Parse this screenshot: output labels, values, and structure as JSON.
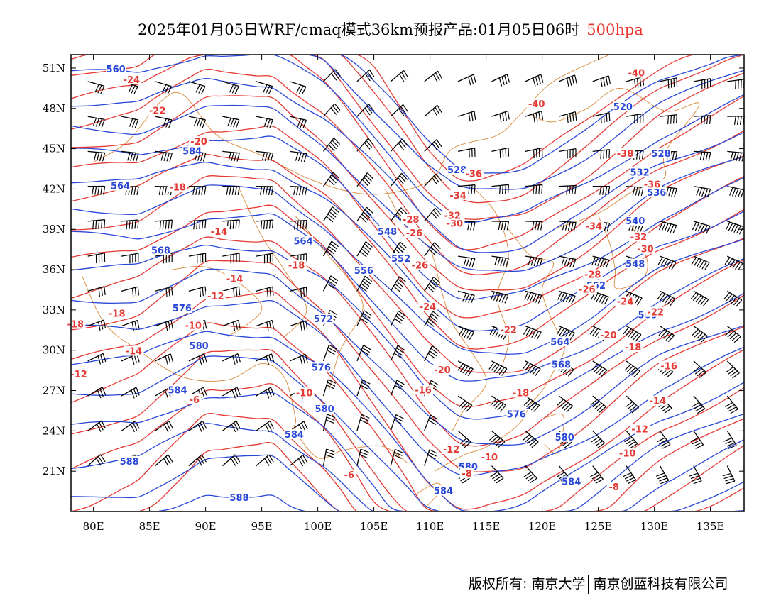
{
  "title": {
    "main": "2025年01月05日WRF/cmaq模式36km预报产品:01月05日06时",
    "level": "500hpa"
  },
  "map": {
    "lon_range": [
      78,
      138
    ],
    "lat_range": [
      18,
      52
    ],
    "lon_ticks": [
      "80E",
      "85E",
      "90E",
      "95E",
      "100E",
      "105E",
      "110E",
      "115E",
      "120E",
      "125E",
      "130E",
      "135E"
    ],
    "lat_ticks": [
      "51N",
      "48N",
      "45N",
      "42N",
      "39N",
      "36N",
      "33N",
      "30N",
      "27N",
      "24N",
      "21N"
    ],
    "colors": {
      "height": "#2a48d8",
      "temperature": "#e53a34",
      "border": "#d98a3a",
      "wind": "#000000"
    },
    "height_labels": [
      {
        "t": "560",
        "lon": 82.0,
        "lat": 50.9
      },
      {
        "t": "584",
        "lon": 88.8,
        "lat": 44.8
      },
      {
        "t": "564",
        "lon": 82.4,
        "lat": 42.2
      },
      {
        "t": "568",
        "lon": 86.0,
        "lat": 37.4
      },
      {
        "t": "576",
        "lon": 87.9,
        "lat": 33.1
      },
      {
        "t": "580",
        "lon": 89.4,
        "lat": 30.3
      },
      {
        "t": "584",
        "lon": 87.5,
        "lat": 27.0
      },
      {
        "t": "588",
        "lon": 83.2,
        "lat": 21.7
      },
      {
        "t": "588",
        "lon": 93.0,
        "lat": 19.0
      },
      {
        "t": "584",
        "lon": 97.9,
        "lat": 23.7
      },
      {
        "t": "580",
        "lon": 100.6,
        "lat": 25.6
      },
      {
        "t": "576",
        "lon": 100.3,
        "lat": 28.7
      },
      {
        "t": "572",
        "lon": 100.5,
        "lat": 32.3
      },
      {
        "t": "564",
        "lon": 98.7,
        "lat": 38.1
      },
      {
        "t": "556",
        "lon": 104.1,
        "lat": 35.9
      },
      {
        "t": "548",
        "lon": 106.2,
        "lat": 38.8
      },
      {
        "t": "552",
        "lon": 107.4,
        "lat": 36.8
      },
      {
        "t": "528",
        "lon": 112.4,
        "lat": 43.4
      },
      {
        "t": "520",
        "lon": 127.2,
        "lat": 48.1
      },
      {
        "t": "528",
        "lon": 130.6,
        "lat": 44.6
      },
      {
        "t": "532",
        "lon": 128.7,
        "lat": 43.2
      },
      {
        "t": "536",
        "lon": 130.2,
        "lat": 41.7
      },
      {
        "t": "540",
        "lon": 128.3,
        "lat": 39.6
      },
      {
        "t": "548",
        "lon": 128.3,
        "lat": 36.4
      },
      {
        "t": "552",
        "lon": 124.8,
        "lat": 34.8
      },
      {
        "t": "560",
        "lon": 129.4,
        "lat": 32.6
      },
      {
        "t": "564",
        "lon": 121.6,
        "lat": 30.6
      },
      {
        "t": "568",
        "lon": 121.7,
        "lat": 28.9
      },
      {
        "t": "576",
        "lon": 117.7,
        "lat": 25.2
      },
      {
        "t": "580",
        "lon": 122.0,
        "lat": 23.5
      },
      {
        "t": "580",
        "lon": 113.4,
        "lat": 21.3
      },
      {
        "t": "584",
        "lon": 111.2,
        "lat": 19.5
      },
      {
        "t": "584",
        "lon": 122.6,
        "lat": 20.2
      }
    ],
    "temperature_labels": [
      {
        "t": "-24",
        "lon": 83.4,
        "lat": 50.1
      },
      {
        "t": "-22",
        "lon": 85.7,
        "lat": 47.8
      },
      {
        "t": "-20",
        "lon": 89.4,
        "lat": 45.5
      },
      {
        "t": "-18",
        "lon": 87.5,
        "lat": 42.1
      },
      {
        "t": "-14",
        "lon": 91.2,
        "lat": 38.8
      },
      {
        "t": "-14",
        "lon": 92.6,
        "lat": 35.3
      },
      {
        "t": "-12",
        "lon": 90.9,
        "lat": 34.0
      },
      {
        "t": "-10",
        "lon": 88.9,
        "lat": 31.8
      },
      {
        "t": "-18",
        "lon": 82.1,
        "lat": 32.7
      },
      {
        "t": "-14",
        "lon": 83.6,
        "lat": 29.9
      },
      {
        "t": "-18",
        "lon": 78.4,
        "lat": 31.9
      },
      {
        "t": "-12",
        "lon": 78.7,
        "lat": 28.2
      },
      {
        "t": "-6",
        "lon": 89.0,
        "lat": 26.3
      },
      {
        "t": "-10",
        "lon": 98.8,
        "lat": 26.8
      },
      {
        "t": "-18",
        "lon": 98.1,
        "lat": 36.3
      },
      {
        "t": "-6",
        "lon": 102.8,
        "lat": 20.7
      },
      {
        "t": "-8",
        "lon": 113.3,
        "lat": 20.8
      },
      {
        "t": "-10",
        "lon": 115.3,
        "lat": 22.0
      },
      {
        "t": "-12",
        "lon": 111.9,
        "lat": 22.6
      },
      {
        "t": "-16",
        "lon": 109.4,
        "lat": 27.0
      },
      {
        "t": "-20",
        "lon": 111.1,
        "lat": 28.5
      },
      {
        "t": "-18",
        "lon": 118.1,
        "lat": 26.8
      },
      {
        "t": "-22",
        "lon": 117.0,
        "lat": 31.5
      },
      {
        "t": "-24",
        "lon": 109.8,
        "lat": 33.2
      },
      {
        "t": "-26",
        "lon": 109.1,
        "lat": 36.3
      },
      {
        "t": "-26",
        "lon": 108.6,
        "lat": 38.7
      },
      {
        "t": "-28",
        "lon": 108.3,
        "lat": 39.7
      },
      {
        "t": "-30",
        "lon": 112.2,
        "lat": 39.4
      },
      {
        "t": "-32",
        "lon": 112.0,
        "lat": 40.0
      },
      {
        "t": "-34",
        "lon": 112.5,
        "lat": 41.5
      },
      {
        "t": "-36",
        "lon": 113.9,
        "lat": 43.1
      },
      {
        "t": "-38",
        "lon": 127.4,
        "lat": 44.6
      },
      {
        "t": "-40",
        "lon": 119.5,
        "lat": 48.3
      },
      {
        "t": "-40",
        "lon": 128.4,
        "lat": 50.6
      },
      {
        "t": "-36",
        "lon": 129.8,
        "lat": 42.3
      },
      {
        "t": "-34",
        "lon": 124.6,
        "lat": 39.2
      },
      {
        "t": "-32",
        "lon": 128.6,
        "lat": 38.4
      },
      {
        "t": "-30",
        "lon": 129.2,
        "lat": 37.5
      },
      {
        "t": "-28",
        "lon": 124.5,
        "lat": 35.6
      },
      {
        "t": "-26",
        "lon": 124.0,
        "lat": 34.5
      },
      {
        "t": "-24",
        "lon": 127.4,
        "lat": 33.6
      },
      {
        "t": "-22",
        "lon": 130.1,
        "lat": 32.8
      },
      {
        "t": "-20",
        "lon": 125.9,
        "lat": 31.1
      },
      {
        "t": "-18",
        "lon": 128.1,
        "lat": 30.2
      },
      {
        "t": "-16",
        "lon": 131.3,
        "lat": 28.8
      },
      {
        "t": "-14",
        "lon": 130.3,
        "lat": 26.2
      },
      {
        "t": "-12",
        "lon": 128.7,
        "lat": 24.1
      },
      {
        "t": "-10",
        "lon": 127.6,
        "lat": 22.3
      },
      {
        "t": "-8",
        "lon": 126.4,
        "lat": 19.8
      }
    ]
  },
  "footer": {
    "left": "版权所有: 南京大学",
    "right": "南京创蓝科技有限公司"
  }
}
